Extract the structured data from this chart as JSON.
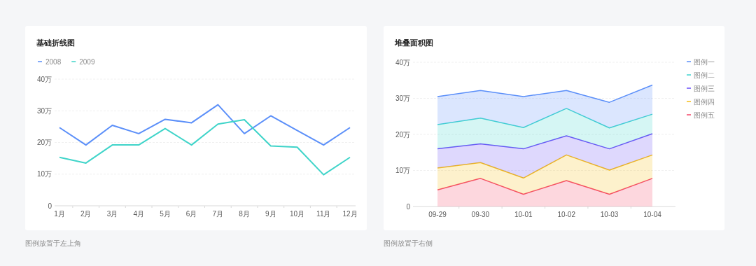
{
  "chart_data": [
    {
      "type": "line",
      "title": "基础折线图",
      "categories": [
        "1月",
        "2月",
        "3月",
        "4月",
        "5月",
        "6月",
        "7月",
        "8月",
        "9月",
        "10月",
        "11月",
        "12月"
      ],
      "series": [
        {
          "name": "2008",
          "color": "#5b8ff9",
          "values": [
            24.7,
            19.2,
            25.4,
            22.8,
            27.3,
            26.2,
            31.9,
            22.8,
            28.4,
            23.8,
            19.2,
            24.7
          ]
        },
        {
          "name": "2009",
          "color": "#3fd4c9",
          "values": [
            15.3,
            13.5,
            19.2,
            19.2,
            24.4,
            19.2,
            25.8,
            27.2,
            18.9,
            18.5,
            9.8,
            15.3
          ]
        }
      ],
      "ylim": [
        0,
        40
      ],
      "yticks": [
        0,
        {
          "value": 10,
          "label": "10万"
        },
        {
          "value": 20,
          "label": "20万"
        },
        {
          "value": 30,
          "label": "30万"
        },
        {
          "value": 40,
          "label": "40万"
        }
      ],
      "grid": "y",
      "legend": "top left",
      "annotations": [
        "图例放置于左上角"
      ]
    },
    {
      "type": "area",
      "title": "堆叠面积图",
      "stacked": true,
      "categories": [
        "09-29",
        "09-30",
        "10-01",
        "10-02",
        "10-03",
        "10-04"
      ],
      "series": [
        {
          "name": "图例五",
          "color": "#f5476a",
          "values": [
            4.6,
            7.8,
            3.4,
            7.2,
            3.4,
            7.8
          ]
        },
        {
          "name": "图例四",
          "color": "#f6bd16",
          "values": [
            6.1,
            4.4,
            4.5,
            7.1,
            6.7,
            6.5
          ]
        },
        {
          "name": "图例三",
          "color": "#6a4ef8",
          "values": [
            5.3,
            5.2,
            8.1,
            5.3,
            5.9,
            5.9
          ]
        },
        {
          "name": "图例二",
          "color": "#3fd4cf",
          "values": [
            6.7,
            7.1,
            5.9,
            7.6,
            5.8,
            5.4
          ]
        },
        {
          "name": "图例一",
          "color": "#5b8ff9",
          "values": [
            7.8,
            7.7,
            8.6,
            5.0,
            7.1,
            8.1
          ]
        }
      ],
      "ylim": [
        0,
        40
      ],
      "yticks": [
        0,
        {
          "value": 10,
          "label": "10万"
        },
        {
          "value": 20,
          "label": "20万"
        },
        {
          "value": 30,
          "label": "30万"
        },
        {
          "value": 40,
          "label": "40万"
        }
      ],
      "grid": "y",
      "legend": "right",
      "annotations": [
        "图例放置于右侧"
      ]
    }
  ]
}
